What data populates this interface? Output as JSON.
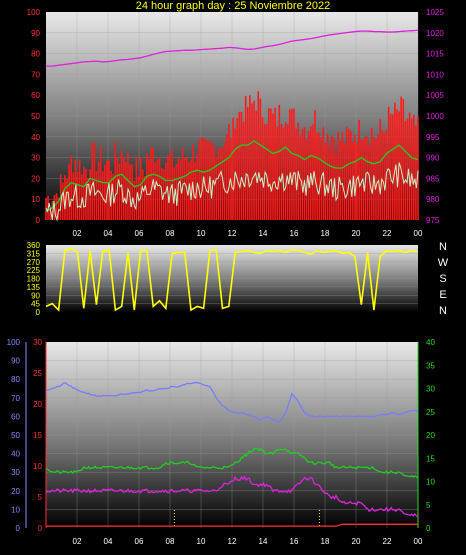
{
  "title": "24 hour graph day : 25 Noviembre 2022",
  "compass": [
    "N",
    "W",
    "S",
    "E",
    "N"
  ],
  "colors": {
    "red": "#ff1a1a",
    "green": "#22cc22",
    "mint": "#c8f2c8",
    "magenta": "#dd22dd",
    "yellow": "#ffff00",
    "blue": "#7a7aff",
    "hum": "#8888ff",
    "rain": "#ff3030",
    "solar": "#22dd22"
  },
  "chart_data": [
    {
      "type": "line",
      "name": "wind-pressure",
      "x_ticks": [
        "02",
        "04",
        "06",
        "08",
        "10",
        "12",
        "14",
        "16",
        "18",
        "20",
        "22",
        "00"
      ],
      "left_axis": {
        "ticks": [
          0,
          10,
          20,
          30,
          40,
          50,
          60,
          70,
          80,
          90,
          100
        ],
        "ylim": [
          0,
          100
        ]
      },
      "right_axis": {
        "ticks": [
          975,
          980,
          985,
          990,
          995,
          1000,
          1005,
          1010,
          1015,
          1020,
          1025
        ],
        "ylim": [
          975,
          1025
        ]
      },
      "series": [
        {
          "color": "red",
          "kind": "band",
          "axis": "left",
          "values": [
            8,
            10,
            14,
            20,
            26,
            24,
            22,
            28,
            26,
            25,
            24,
            28,
            30,
            26,
            22,
            22,
            28,
            30,
            28,
            26,
            25,
            27,
            28,
            30,
            32,
            30,
            32,
            34,
            36,
            40,
            48,
            50,
            52,
            55,
            50,
            48,
            46,
            48,
            50,
            46,
            44,
            42,
            46,
            44,
            40,
            38,
            36,
            36,
            38,
            40,
            42,
            40,
            38,
            40,
            46,
            48,
            50,
            46,
            42,
            40
          ]
        },
        {
          "color": "green",
          "kind": "line",
          "axis": "left",
          "values": [
            4,
            6,
            9,
            15,
            18,
            17,
            16,
            20,
            19,
            18,
            18,
            21,
            22,
            19,
            16,
            17,
            21,
            22,
            21,
            19,
            19,
            20,
            21,
            23,
            24,
            23,
            24,
            26,
            28,
            30,
            34,
            36,
            36,
            38,
            36,
            34,
            32,
            33,
            35,
            32,
            31,
            29,
            31,
            30,
            28,
            26,
            25,
            25,
            27,
            28,
            30,
            28,
            27,
            28,
            32,
            34,
            36,
            33,
            30,
            29
          ]
        },
        {
          "color": "mint",
          "kind": "noisy",
          "axis": "left",
          "values": [
            3,
            4,
            6,
            10,
            12,
            11,
            11,
            13,
            13,
            12,
            12,
            14,
            15,
            12,
            10,
            10,
            14,
            15,
            14,
            13,
            12,
            13,
            14,
            15,
            16,
            15,
            16,
            17,
            18,
            19,
            20,
            20,
            21,
            22,
            21,
            20,
            19,
            20,
            20,
            19,
            18,
            17,
            18,
            18,
            17,
            16,
            15,
            15,
            16,
            17,
            18,
            17,
            17,
            18,
            20,
            21,
            22,
            20,
            19,
            18
          ]
        },
        {
          "color": "magenta",
          "kind": "line",
          "axis": "right",
          "values": [
            1012.0,
            1012.0,
            1012.2,
            1012.4,
            1012.6,
            1012.8,
            1013.0,
            1013.1,
            1013.2,
            1013.0,
            1013.1,
            1013.3,
            1013.5,
            1013.6,
            1013.8,
            1014.0,
            1014.4,
            1014.8,
            1015.2,
            1015.5,
            1015.6,
            1015.7,
            1015.8,
            1015.8,
            1015.9,
            1016.0,
            1016.1,
            1016.2,
            1016.3,
            1016.5,
            1016.4,
            1016.2,
            1016.0,
            1016.1,
            1016.4,
            1016.7,
            1016.9,
            1017.2,
            1017.6,
            1018.0,
            1018.2,
            1018.4,
            1018.6,
            1018.9,
            1019.2,
            1019.5,
            1019.7,
            1019.9,
            1020.1,
            1020.3,
            1020.4,
            1020.4,
            1020.3,
            1020.3,
            1020.2,
            1020.2,
            1020.3,
            1020.4,
            1020.5,
            1020.6
          ]
        }
      ]
    },
    {
      "type": "line",
      "name": "wind-direction",
      "y_ticks": [
        0,
        45,
        90,
        135,
        180,
        225,
        270,
        315,
        360
      ],
      "ylim": [
        0,
        360
      ],
      "series": [
        {
          "color": "yellow",
          "values": [
            30,
            45,
            10,
            330,
            340,
            320,
            20,
            330,
            40,
            325,
            335,
            10,
            30,
            320,
            10,
            330,
            330,
            30,
            60,
            20,
            315,
            320,
            320,
            10,
            30,
            20,
            330,
            335,
            20,
            30,
            320,
            325,
            330,
            320,
            315,
            330,
            325,
            330,
            320,
            335,
            330,
            320,
            310,
            330,
            320,
            325,
            330,
            315,
            320,
            300,
            40,
            320,
            10,
            300,
            330,
            325,
            330,
            320,
            330,
            325
          ]
        }
      ]
    },
    {
      "type": "line",
      "name": "temp-hum-solar",
      "x_ticks": [
        "02",
        "04",
        "06",
        "08",
        "10",
        "12",
        "14",
        "16",
        "18",
        "20",
        "22",
        "00"
      ],
      "left_axis_hum": {
        "ticks": [
          0,
          10,
          20,
          30,
          40,
          50,
          60,
          70,
          80,
          90,
          100
        ],
        "ylim": [
          0,
          100
        ]
      },
      "left_axis_temp": {
        "ticks": [
          0,
          5,
          10,
          15,
          20,
          25,
          30
        ],
        "ylim": [
          0,
          30
        ]
      },
      "right_axis": {
        "ticks": [
          0,
          5,
          10,
          15,
          20,
          25,
          30,
          35,
          40
        ],
        "ylim": [
          0,
          40
        ]
      },
      "series": [
        {
          "color": "blue",
          "axis": "hum",
          "values": [
            74,
            75,
            76,
            78,
            76,
            74,
            73,
            72,
            71,
            71,
            71,
            71,
            72,
            72,
            73,
            73,
            74,
            74,
            75,
            75,
            76,
            76,
            77,
            78,
            78,
            77,
            76,
            70,
            66,
            63,
            62,
            62,
            61,
            60,
            58,
            60,
            58,
            57,
            62,
            72,
            68,
            62,
            60,
            60,
            60,
            60,
            60,
            60,
            60,
            60,
            60,
            60,
            60,
            61,
            61,
            62,
            61,
            62,
            63,
            63
          ]
        },
        {
          "color": "green",
          "axis": "right",
          "values": [
            13,
            12,
            12,
            12,
            12,
            12,
            13,
            13,
            13,
            13,
            13,
            13,
            13,
            13,
            13,
            13,
            13,
            13,
            13,
            14,
            14,
            14,
            14,
            14,
            13,
            13,
            13,
            13,
            13,
            13,
            14,
            15,
            16,
            17,
            17,
            16,
            16,
            17,
            17,
            16,
            16,
            15,
            14,
            14,
            14,
            14,
            13,
            13,
            13,
            13,
            13,
            13,
            13,
            12,
            12,
            12,
            12,
            11,
            11,
            11
          ]
        },
        {
          "color": "magenta",
          "axis": "temp",
          "values": [
            6,
            6,
            6,
            6,
            6,
            6,
            6,
            6,
            6,
            6,
            6,
            6,
            6,
            6,
            6,
            6,
            6,
            6,
            6,
            6,
            6,
            6,
            6,
            6,
            6,
            6,
            6,
            6,
            7,
            7,
            8,
            8,
            8,
            7,
            7,
            7,
            6,
            6,
            6,
            6,
            7,
            8,
            8,
            7,
            6,
            5,
            5,
            4,
            4,
            4,
            4,
            3,
            3,
            3,
            3,
            3,
            3,
            2,
            2,
            2
          ]
        },
        {
          "color": "rain",
          "axis": "temp",
          "values": [
            0.3,
            0.3,
            0.3,
            0.3,
            0.3,
            0.3,
            0.3,
            0.3,
            0.3,
            0.3,
            0.3,
            0.3,
            0.3,
            0.3,
            0.3,
            0.3,
            0.3,
            0.3,
            0.3,
            0.3,
            0.3,
            0.3,
            0.3,
            0.3,
            0.3,
            0.3,
            0.3,
            0.3,
            0.3,
            0.3,
            0.3,
            0.3,
            0.3,
            0.3,
            0.3,
            0.3,
            0.3,
            0.3,
            0.3,
            0.3,
            0.3,
            0.3,
            0.3,
            0.3,
            0.3,
            0.3,
            0.3,
            0.6,
            0.6,
            0.6,
            0.6,
            0.6,
            0.6,
            0.6,
            0.6,
            0.6,
            0.6,
            0.6,
            0.6,
            0.6
          ]
        }
      ]
    }
  ]
}
